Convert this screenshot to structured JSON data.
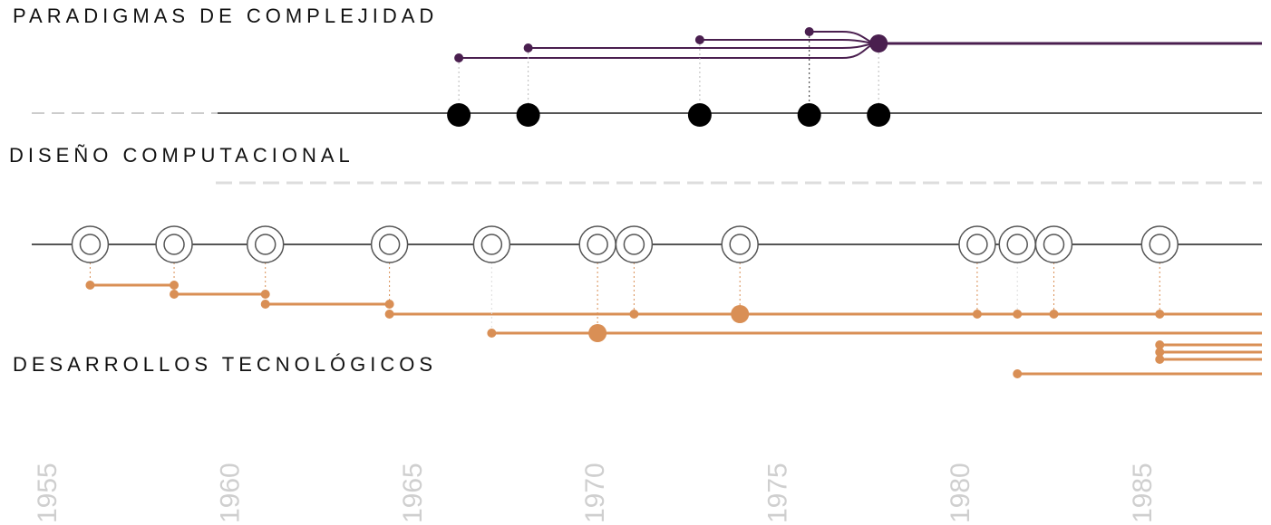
{
  "chart_data": {
    "type": "timeline",
    "xlim": [
      1954.6,
      1988.3
    ],
    "xticks": [
      1955,
      1960,
      1965,
      1970,
      1975,
      1980,
      1985
    ],
    "tracks": [
      {
        "name": "PARADIGMAS DE COMPLEJIDAD",
        "color": "#4a1f4f"
      },
      {
        "name": "DISEÑO COMPUTACIONAL",
        "color": "#000000"
      },
      {
        "name": "DESARROLLOS TECNOLÓGICOS",
        "color": "#d98f55"
      }
    ],
    "design_events": [
      1966.3,
      1968.2,
      1972.9,
      1975.9,
      1977.8
    ],
    "tech_events": [
      1956.2,
      1958.5,
      1961.0,
      1964.4,
      1967.2,
      1970.1,
      1971.1,
      1974.0,
      1980.5,
      1981.6,
      1982.6,
      1985.5
    ]
  }
}
